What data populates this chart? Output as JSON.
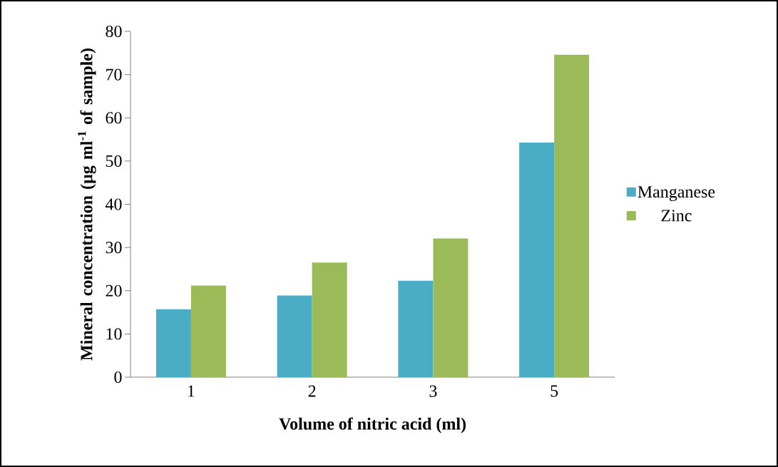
{
  "chart_data": {
    "type": "bar",
    "xlabel": "Volume of nitric acid (ml)",
    "ylabel": "Mineral concentration  (µg ml$^{-1}$ of sample)",
    "categories": [
      "1",
      "2",
      "3",
      "5"
    ],
    "series": [
      {
        "name": "Manganese",
        "color": "#4bacc6",
        "values": [
          15.7,
          18.9,
          22.3,
          54.3
        ]
      },
      {
        "name": "Zinc",
        "color": "#9bbb59",
        "values": [
          21.2,
          26.5,
          32.1,
          74.6
        ]
      }
    ],
    "ylim": [
      0,
      80
    ],
    "yticks": [
      0,
      10,
      20,
      30,
      40,
      50,
      60,
      70,
      80
    ],
    "grid": false,
    "legend": "right"
  }
}
